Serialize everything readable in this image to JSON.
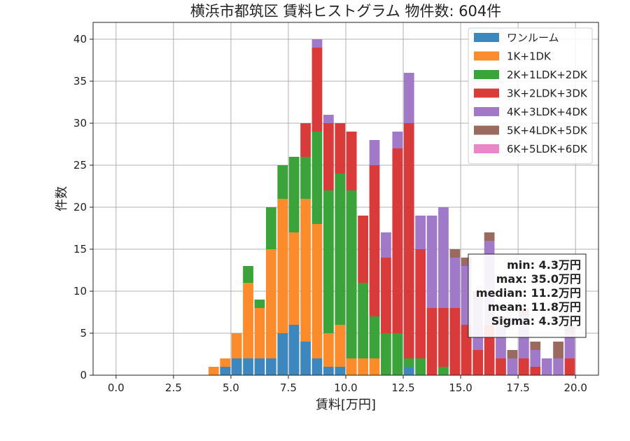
{
  "chart_data": {
    "type": "bar",
    "stacked": true,
    "title": "横浜市都筑区 賃料ヒストグラム  物件数: 604件",
    "xlabel": "賃料[万円]",
    "ylabel": "件数",
    "xlim": [
      -1,
      21
    ],
    "ylim": [
      0,
      42
    ],
    "bin_width": 0.5,
    "x_ticks": [
      0,
      2.5,
      5,
      7.5,
      10,
      12.5,
      15,
      17.5,
      20
    ],
    "x_tick_labels": [
      "0.0",
      "2.5",
      "5.0",
      "7.5",
      "10.0",
      "12.5",
      "15.0",
      "17.5",
      "20.0"
    ],
    "y_ticks": [
      0,
      5,
      10,
      15,
      20,
      25,
      30,
      35,
      40
    ],
    "y_tick_labels": [
      "0",
      "5",
      "10",
      "15",
      "20",
      "25",
      "30",
      "35",
      "40"
    ],
    "grid": true,
    "legend_position": "top-right",
    "x": [
      4.0,
      4.5,
      5.0,
      5.5,
      6.0,
      6.5,
      7.0,
      7.5,
      8.0,
      8.5,
      9.0,
      9.5,
      10.0,
      10.5,
      11.0,
      11.5,
      12.0,
      12.5,
      13.0,
      13.5,
      14.0,
      14.5,
      15.0,
      15.5,
      16.0,
      16.5,
      17.0,
      17.5,
      18.0,
      18.5,
      19.0,
      19.5
    ],
    "series": [
      {
        "name": "ワンルーム",
        "color": "#3b87be",
        "values": [
          0,
          1,
          2,
          2,
          2,
          2,
          5,
          6,
          4,
          2,
          1,
          1,
          0,
          0,
          0,
          0,
          0,
          1,
          0,
          0,
          0,
          0,
          0,
          0,
          0,
          0,
          0,
          0,
          0,
          0,
          0,
          0
        ]
      },
      {
        "name": "1K+1DK",
        "color": "#fc8b2b",
        "values": [
          1,
          1,
          3,
          9,
          6,
          13,
          16,
          11,
          17,
          16,
          4,
          5,
          2,
          2,
          2,
          0,
          0,
          0,
          0,
          0,
          0,
          0,
          0,
          0,
          0,
          0,
          0,
          0,
          0,
          0,
          0,
          0
        ]
      },
      {
        "name": "2K+1LDK+2DK",
        "color": "#3aa43b",
        "values": [
          0,
          0,
          0,
          2,
          1,
          5,
          4,
          9,
          5,
          11,
          17,
          18,
          20,
          9,
          5,
          5,
          5,
          1,
          2,
          0,
          1,
          0,
          0,
          0,
          0,
          0,
          0,
          0,
          0,
          0,
          0,
          0
        ]
      },
      {
        "name": "3K+2LDK+3DK",
        "color": "#d93b3b",
        "values": [
          0,
          0,
          0,
          0,
          0,
          0,
          0,
          0,
          4,
          10,
          8,
          6,
          7,
          8,
          18,
          9,
          22,
          28,
          13,
          8,
          7,
          8,
          6,
          3,
          6,
          2,
          0,
          2,
          1,
          0,
          0,
          2
        ]
      },
      {
        "name": "4K+3LDK+4DK",
        "color": "#a07ac8",
        "values": [
          0,
          0,
          0,
          0,
          0,
          0,
          0,
          0,
          0,
          1,
          1,
          0,
          0,
          0,
          3,
          3,
          2,
          6,
          4,
          11,
          12,
          6,
          7,
          6,
          10,
          4,
          2,
          5,
          2,
          2,
          2,
          3
        ]
      },
      {
        "name": "5K+4LDK+5DK",
        "color": "#9b6a5f",
        "values": [
          0,
          0,
          0,
          0,
          0,
          0,
          0,
          0,
          0,
          0,
          0,
          0,
          0,
          0,
          0,
          0,
          0,
          0,
          0,
          0,
          0,
          1,
          1,
          1,
          1,
          1,
          1,
          1,
          1,
          0,
          2,
          1
        ]
      },
      {
        "name": "6K+5LDK+6DK",
        "color": "#e987c8",
        "values": [
          0,
          0,
          0,
          0,
          0,
          0,
          0,
          0,
          0,
          0,
          0,
          0,
          0,
          0,
          0,
          0,
          0,
          0,
          0,
          0,
          0,
          0,
          0,
          0,
          0,
          0,
          0,
          0,
          0,
          0,
          0,
          0
        ]
      }
    ],
    "stats": [
      "min: 4.3万円",
      "max: 35.0万円",
      "median: 11.2万円",
      "mean: 11.8万円",
      "Sigma: 4.3万円"
    ]
  }
}
